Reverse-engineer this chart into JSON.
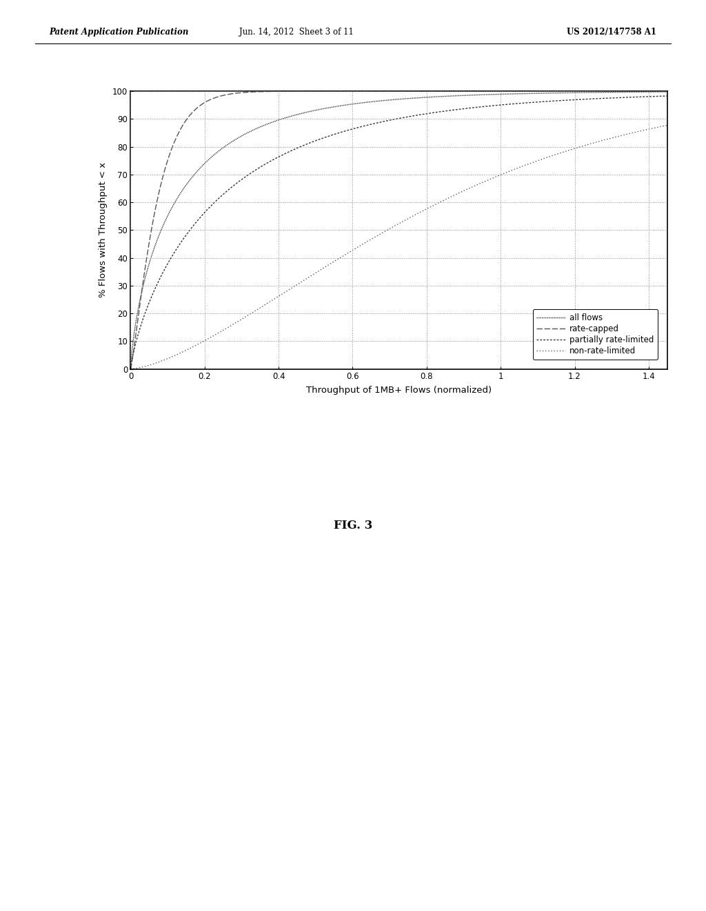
{
  "xlabel": "Throughput of 1MB+ Flows (normalized)",
  "ylabel": "% Flows with Throughput < x",
  "xlim": [
    0,
    1.45
  ],
  "ylim": [
    0,
    100
  ],
  "xticks": [
    0,
    0.2,
    0.4,
    0.6,
    0.8,
    1.0,
    1.2,
    1.4
  ],
  "yticks": [
    0,
    10,
    20,
    30,
    40,
    50,
    60,
    70,
    80,
    90,
    100
  ],
  "legend_labels": [
    "all flows",
    "rate-capped",
    "partially rate-limited",
    "non-rate-limited"
  ],
  "header_left": "Patent Application Publication",
  "header_center": "Jun. 14, 2012  Sheet 3 of 11",
  "header_right": "US 2012/147758 A1",
  "fig_label": "FIG. 3",
  "background_color": "#ffffff",
  "plot_bg_color": "#ffffff"
}
